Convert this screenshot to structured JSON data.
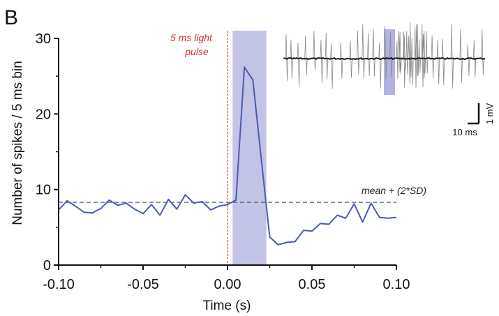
{
  "panel_label": "B",
  "chart_data": {
    "type": "line",
    "xlabel": "Time (s)",
    "ylabel": "Number of spikes / 5 ms bin",
    "xlim": [
      -0.1,
      0.1
    ],
    "ylim": [
      0,
      30
    ],
    "xticks": [
      "-0.10",
      "-0.05",
      "0.00",
      "0.05",
      "0.10"
    ],
    "yticks": [
      "0",
      "10",
      "20",
      "30"
    ],
    "grid": false,
    "line_color": "#4a5bb0",
    "x": [
      -0.1,
      -0.095,
      -0.09,
      -0.085,
      -0.08,
      -0.075,
      -0.07,
      -0.065,
      -0.06,
      -0.055,
      -0.05,
      -0.045,
      -0.04,
      -0.035,
      -0.03,
      -0.025,
      -0.02,
      -0.015,
      -0.01,
      -0.005,
      0.0,
      0.005,
      0.01,
      0.015,
      0.02,
      0.025,
      0.03,
      0.035,
      0.04,
      0.045,
      0.05,
      0.055,
      0.06,
      0.065,
      0.07,
      0.075,
      0.08,
      0.085,
      0.09,
      0.095,
      0.1
    ],
    "y": [
      7.3,
      8.5,
      7.8,
      7.0,
      6.9,
      7.5,
      8.6,
      7.9,
      8.2,
      7.4,
      6.8,
      8.0,
      6.6,
      8.7,
      7.4,
      9.3,
      8.2,
      8.4,
      7.3,
      7.8,
      8.0,
      8.6,
      26.2,
      24.5,
      14.0,
      3.7,
      2.7,
      3.0,
      3.1,
      4.6,
      4.5,
      5.5,
      5.4,
      6.6,
      6.2,
      8.1,
      5.7,
      8.2,
      6.3,
      6.2,
      6.3
    ],
    "threshold": {
      "value": 8.3,
      "label": "mean + (2*SD)",
      "color": "#5a5e8c"
    },
    "stimulus_line": {
      "x": 0.0,
      "color": "#e0452c"
    },
    "light_pulse": {
      "x_start": 0.003,
      "x_end": 0.023,
      "color": "#bcbde3",
      "label_lines": [
        "5 ms light",
        "pulse"
      ]
    }
  },
  "inset": {
    "trace_color": "#1a1a1a",
    "overlay_color": "#8a8a8a",
    "highlight_color": "#b1b2e0",
    "scale_bar_y_label": "1 mV",
    "scale_bar_x_label": "10 ms"
  }
}
